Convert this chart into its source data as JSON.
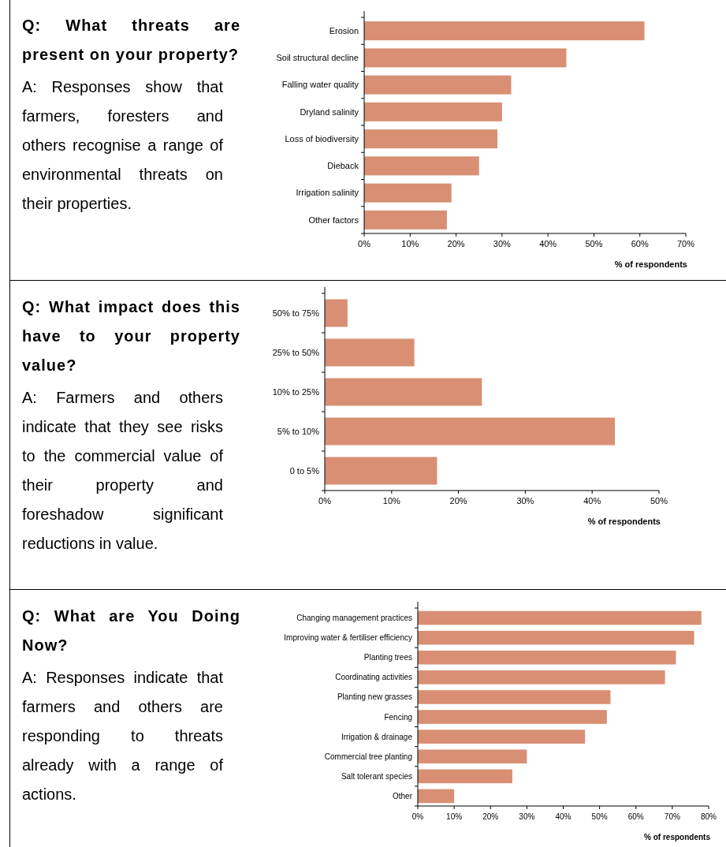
{
  "chart_data": [
    {
      "type": "bar",
      "orientation": "horizontal",
      "title": "Q: What threats are present on your property?",
      "subtitle": "A: Responses show that farmers, foresters and others recognise a range of environmental threats on their properties.",
      "xlabel": "% of respondents",
      "categories": [
        "Erosion",
        "Soil structural decline",
        "Falling water quality",
        "Dryland salinity",
        "Loss of biodiversity",
        "Dieback",
        "Irrigation salinity",
        "Other factors"
      ],
      "values": [
        61,
        44,
        32,
        30,
        29,
        25,
        19,
        18
      ],
      "color": "#d98f73",
      "xlim": [
        0,
        70
      ],
      "xticks": [
        {
          "value": 0,
          "label": "0%"
        },
        {
          "value": 10,
          "label": "10%"
        },
        {
          "value": 20,
          "label": "20%"
        },
        {
          "value": 30,
          "label": "30%"
        },
        {
          "value": 40,
          "label": "40%"
        },
        {
          "value": 50,
          "label": "50%"
        },
        {
          "value": 60,
          "label": "60%"
        },
        {
          "value": 70,
          "label": "70%"
        }
      ]
    },
    {
      "type": "bar",
      "orientation": "horizontal",
      "title": "Q: What impact does this have to your property value?",
      "subtitle": "A: Farmers and others indicate that they see risks to the commercial value of their property and foreshadow significant reductions in value.",
      "xlabel": "% of respondents",
      "categories": [
        "50% to 75%",
        "25% to 50%",
        "10% to 25%",
        "5% to 10%",
        "0 to 5%"
      ],
      "values": [
        3.4,
        13.4,
        23.5,
        43.4,
        16.8
      ],
      "color": "#d98f73",
      "xlim": [
        0,
        50
      ],
      "xticks": [
        {
          "value": 0,
          "label": "0%"
        },
        {
          "value": 10,
          "label": "10%"
        },
        {
          "value": 20,
          "label": "20%"
        },
        {
          "value": 30,
          "label": "30%"
        },
        {
          "value": 40,
          "label": "40%"
        },
        {
          "value": 50,
          "label": "50%"
        }
      ]
    },
    {
      "type": "bar",
      "orientation": "horizontal",
      "title": "Q: What are You Doing Now?",
      "subtitle": "A: Responses indicate that farmers and others are responding to threats already with a range of actions.",
      "xlabel": "% of respondents",
      "categories": [
        "Changing management practices",
        "Improving water & fertiliser efficiency",
        "Planting trees",
        "Coordinating activities",
        "Planting new grasses",
        "Fencing",
        "Irrigation & drainage",
        "Commercial tree planting",
        "Salt tolerant species",
        "Other"
      ],
      "values": [
        78,
        76,
        71,
        68,
        53,
        52,
        46,
        30,
        26,
        10
      ],
      "color": "#d98f73",
      "xlim": [
        0,
        80
      ],
      "xticks": [
        {
          "value": 0,
          "label": "0%"
        },
        {
          "value": 10,
          "label": "10%"
        },
        {
          "value": 20,
          "label": "20%"
        },
        {
          "value": 30,
          "label": "30%"
        },
        {
          "value": 40,
          "label": "40%"
        },
        {
          "value": 50,
          "label": "50%"
        },
        {
          "value": 60,
          "label": "60%"
        },
        {
          "value": 70,
          "label": "70%"
        },
        {
          "value": 80,
          "label": "80%"
        }
      ]
    }
  ]
}
